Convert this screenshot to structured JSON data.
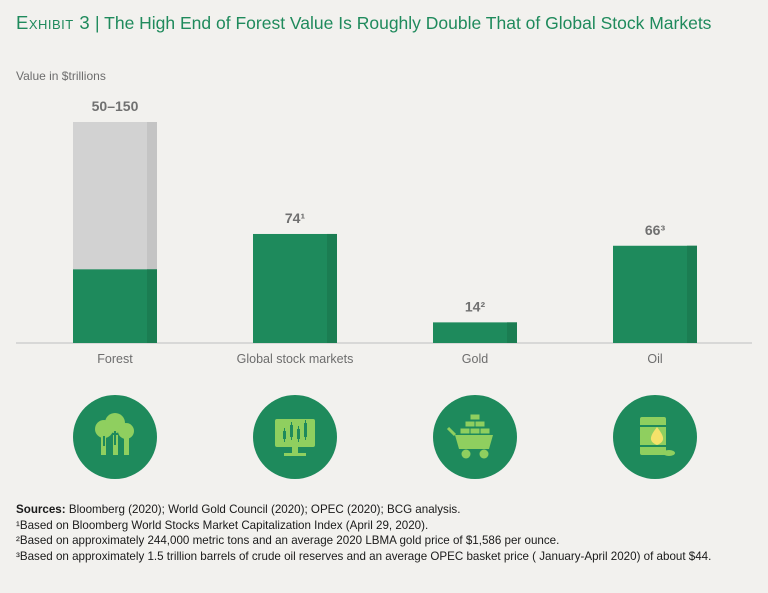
{
  "header": {
    "exhibit": "Exhibit 3",
    "separator": "|",
    "title": "The High End of Forest Value Is Roughly Double That of Global Stock Markets"
  },
  "chart_data": {
    "type": "bar",
    "title": "The High End of Forest Value Is Roughly Double That of Global Stock Markets",
    "ylabel": "Value in $trillions",
    "xlabel": "",
    "ylim": [
      0,
      150
    ],
    "categories": [
      "Forest",
      "Global stock markets",
      "Gold",
      "Oil"
    ],
    "values": [
      50,
      74,
      14,
      66
    ],
    "range_high": [
      150,
      null,
      null,
      null
    ],
    "data_labels": [
      "50–150",
      "74¹",
      "14²",
      "66³"
    ],
    "icons": [
      "trees-icon",
      "stock-monitor-icon",
      "gold-cart-icon",
      "oil-barrel-icon"
    ],
    "colors": {
      "bar": "#1e8a5c",
      "bar_shade": "#1b7d52",
      "range": "#d2d2d2",
      "range_shade": "#c4c4c4",
      "circle": "#1e8a5c",
      "icon_fill": "#8fcf5f",
      "axis": "#cfcfcf",
      "label": "#6d6d6d",
      "value_label": "#707070"
    }
  },
  "footer": {
    "sources_label": "Sources:",
    "sources_text": " Bloomberg (2020); World Gold Council (2020); OPEC (2020); BCG analysis.",
    "note1": "¹Based on Bloomberg World Stocks Market Capitalization Index (April 29, 2020).",
    "note2": "²Based on approximately 244,000 metric tons and an average 2020 LBMA gold price of $1,586 per ounce.",
    "note3": "³Based on approximately 1.5 trillion barrels of crude oil reserves and an average OPEC basket price ( January-April 2020) of about $44."
  }
}
